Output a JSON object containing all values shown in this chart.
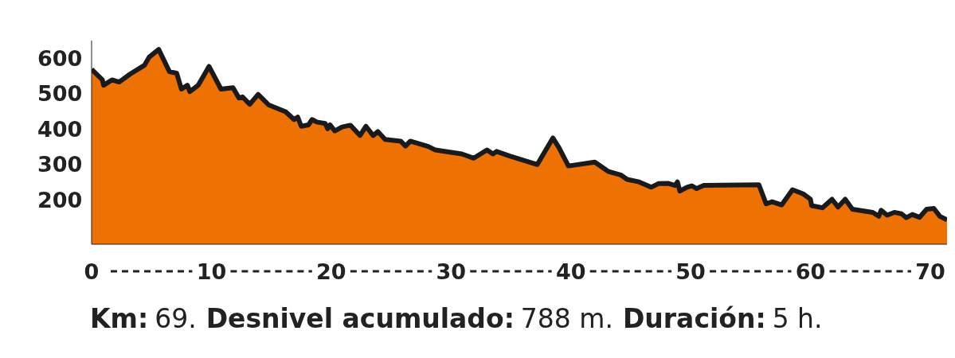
{
  "chart_data": {
    "type": "area",
    "color": "#ee7203",
    "x": [
      0,
      0.9,
      1.0,
      1.7,
      2.3,
      3.2,
      4.4,
      4.8,
      5.6,
      6.5,
      7.1,
      7.5,
      8.0,
      8.2,
      8.9,
      9.8,
      10.8,
      11.8,
      12.3,
      12.6,
      13.2,
      13.9,
      14.8,
      16.2,
      16.9,
      17.2,
      17.5,
      18.1,
      18.4,
      18.8,
      19.5,
      19.7,
      19.9,
      20.3,
      20.9,
      21.6,
      22.4,
      22.9,
      23.5,
      23.9,
      24.5,
      25.8,
      26.2,
      26.6,
      28.1,
      28.7,
      30.9,
      31.9,
      33.0,
      33.5,
      33.8,
      34.9,
      37.2,
      38.5,
      39.0,
      39.8,
      42.0,
      43.1,
      44.2,
      44.7,
      45.7,
      46.7,
      47.3,
      48.1,
      48.7,
      48.9,
      49.1,
      49.7,
      50.1,
      50.5,
      51.1,
      55.7,
      56.3,
      56.8,
      57.6,
      58.5,
      59.4,
      60.0,
      60.1,
      61.0,
      61.8,
      62.3,
      62.9,
      63.5,
      65.2,
      65.7,
      65.9,
      66.4,
      67.0,
      67.6,
      68.0,
      68.5,
      69.1,
      69.7,
      70.3,
      70.8,
      71.4
    ],
    "values": [
      569,
      539,
      524,
      539,
      533,
      555,
      580,
      603,
      625,
      562,
      558,
      513,
      524,
      506,
      524,
      577,
      513,
      517,
      488,
      491,
      470,
      498,
      468,
      449,
      427,
      434,
      408,
      412,
      427,
      420,
      416,
      401,
      412,
      395,
      406,
      411,
      382,
      408,
      382,
      393,
      371,
      366,
      352,
      366,
      351,
      341,
      330,
      318,
      341,
      330,
      337,
      324,
      300,
      375,
      348,
      296,
      307,
      281,
      270,
      258,
      251,
      236,
      246,
      247,
      241,
      251,
      225,
      236,
      240,
      232,
      241,
      243,
      189,
      195,
      186,
      229,
      217,
      202,
      184,
      178,
      202,
      180,
      202,
      174,
      165,
      154,
      171,
      157,
      165,
      161,
      150,
      159,
      151,
      174,
      176,
      154,
      144
    ],
    "xlim": [
      0,
      71.4
    ],
    "xticks": [
      0,
      10,
      20,
      30,
      40,
      50,
      60,
      70
    ],
    "ylim": [
      75,
      650
    ],
    "yticks": [
      200,
      300,
      400,
      500,
      600
    ],
    "grid": false,
    "legend": false,
    "marker": "none",
    "line_style": "solid",
    "annotations": [
      "Km:",
      "69.",
      "Desnivel acumulado:",
      "788 m.",
      "Duración:",
      "5 h."
    ]
  }
}
